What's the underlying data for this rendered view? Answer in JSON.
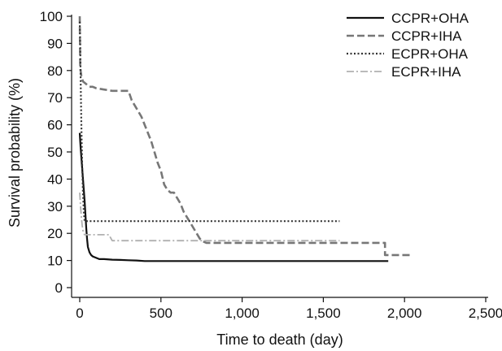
{
  "chart_data": {
    "type": "line",
    "title": "",
    "xlabel": "Time to death (day)",
    "ylabel": "Survival probability (%)",
    "xlim": [
      0,
      2500
    ],
    "ylim": [
      0,
      100
    ],
    "xticks": [
      0,
      500,
      1000,
      1500,
      2000,
      2500
    ],
    "xtick_labels": [
      "0",
      "500",
      "1,000",
      "1,500",
      "2,000",
      "2,500"
    ],
    "yticks": [
      0,
      10,
      20,
      30,
      40,
      50,
      60,
      70,
      80,
      90,
      100
    ],
    "ytick_labels": [
      "0",
      "10",
      "20",
      "30",
      "40",
      "50",
      "60",
      "70",
      "80",
      "90",
      "100"
    ],
    "grid": false,
    "legend_position": "top-right",
    "series": [
      {
        "name": "CCPR+OHA",
        "color": "#111111",
        "dash": "solid",
        "x": [
          0,
          5,
          10,
          15,
          20,
          25,
          30,
          35,
          40,
          45,
          50,
          60,
          70,
          80,
          100,
          120,
          150,
          200,
          250,
          300,
          350,
          400,
          600,
          800,
          1000,
          1200,
          1400,
          1600,
          1800,
          1900
        ],
        "y": [
          57,
          52,
          48,
          44,
          40,
          36,
          32,
          27,
          22,
          18,
          15,
          13,
          12,
          11.5,
          11,
          10.5,
          10.5,
          10.3,
          10.2,
          10.1,
          10,
          9.8,
          9.8,
          9.8,
          9.8,
          9.8,
          9.8,
          9.8,
          9.8,
          9.8
        ]
      },
      {
        "name": "CCPR+IHA",
        "color": "#777777",
        "dash": "dashed",
        "x": [
          0,
          3,
          10,
          20,
          40,
          60,
          80,
          100,
          150,
          200,
          250,
          300,
          320,
          350,
          380,
          400,
          420,
          440,
          460,
          480,
          500,
          520,
          540,
          560,
          580,
          600,
          620,
          640,
          660,
          680,
          700,
          720,
          740,
          760,
          780,
          800,
          1000,
          1200,
          1400,
          1600,
          1800,
          1880,
          1880,
          1950,
          2040
        ],
        "y": [
          100,
          81,
          78,
          76,
          75,
          74,
          74,
          73.5,
          73,
          72.5,
          72.5,
          72.5,
          69,
          66,
          63,
          60,
          57,
          54,
          50,
          46,
          43,
          38,
          36,
          35,
          35,
          33,
          31,
          28,
          26,
          24,
          22,
          20,
          18,
          17,
          16.5,
          16.5,
          16.5,
          16.5,
          16.5,
          16.5,
          16.5,
          16.5,
          12,
          12,
          12
        ]
      },
      {
        "name": "ECPR+OHA",
        "color": "#333333",
        "dash": "dotted",
        "x": [
          0,
          3,
          6,
          10,
          15,
          20,
          25,
          30,
          40,
          60,
          100,
          400,
          800,
          1200,
          1600
        ],
        "y": [
          98,
          90,
          75,
          60,
          45,
          35,
          28,
          24.5,
          24.5,
          24.5,
          24.5,
          24.5,
          24.5,
          24.5,
          24.5
        ]
      },
      {
        "name": "ECPR+IHA",
        "color": "#b0b0b0",
        "dash": "dashdot",
        "x": [
          0,
          5,
          10,
          15,
          20,
          25,
          30,
          40,
          60,
          100,
          150,
          180,
          200,
          300,
          500,
          800,
          1000,
          1200,
          1400,
          1600
        ],
        "y": [
          35,
          30,
          26,
          23,
          21,
          20,
          19.5,
          19.5,
          19.5,
          19.5,
          19.5,
          19.5,
          17.3,
          17.3,
          17.3,
          17.3,
          17.3,
          17.3,
          17.3,
          17.3
        ]
      }
    ]
  }
}
